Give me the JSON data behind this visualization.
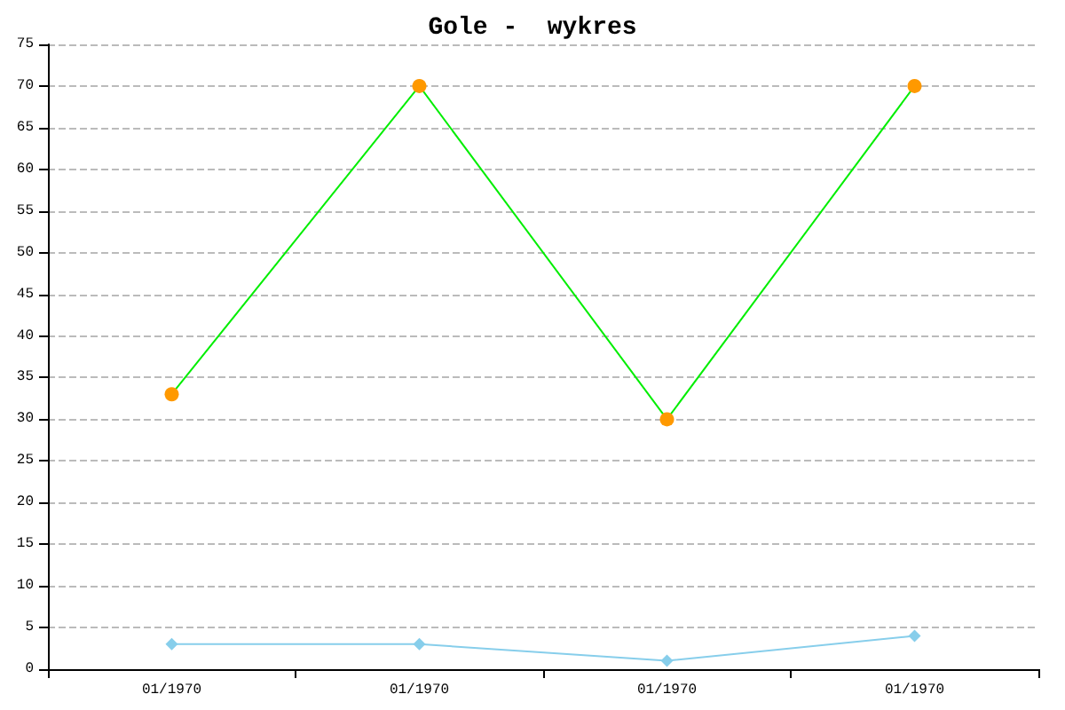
{
  "chart_data": {
    "type": "line",
    "title": "Gole -  wykres",
    "categories": [
      "01/1970",
      "01/1970",
      "01/1970",
      "01/1970"
    ],
    "series": [
      {
        "color": "#00ee00",
        "colors": [
          "#ff9900",
          "#ff9900",
          "#ff9900",
          "#ff9900"
        ],
        "marker": "circle",
        "values": [
          33,
          70,
          30,
          70
        ]
      },
      {
        "color": "#87ceeb",
        "marker": "diamond",
        "values": [
          3,
          3,
          1,
          4
        ]
      }
    ],
    "ylim": [
      0,
      75
    ],
    "yticks": [
      0,
      5,
      10,
      15,
      20,
      25,
      30,
      35,
      40,
      45,
      50,
      55,
      60,
      65,
      70,
      75
    ],
    "grid": "y"
  }
}
